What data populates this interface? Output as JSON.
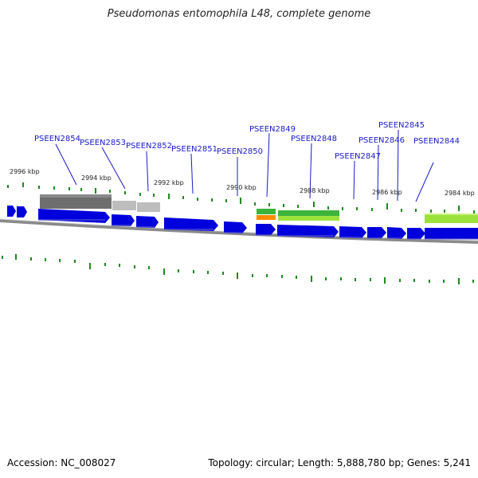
{
  "title": "Pseudomonas entomophila L48, complete genome",
  "footer": {
    "accession": "Accession: NC_008027",
    "summary": "Topology: circular; Length: 5,888,780 bp; Genes: 5,241"
  },
  "colors": {
    "gene": "#0000dd",
    "label": "#1a1acc",
    "tick": "#1e8a1e",
    "backbone": "#8a8a8a",
    "dark_gray": "#6e6e6e",
    "light_gray": "#bdbdbd",
    "green": "#3cb43c",
    "lime": "#9be23c",
    "orange": "#ff8c00"
  },
  "scale_labels": [
    "2996 kbp",
    "2994 kbp",
    "2992 kbp",
    "2990 kbp",
    "2988 kbp",
    "2986 kbp",
    "2984 kbp"
  ],
  "gene_labels": [
    "PSEEN2854",
    "PSEEN2853",
    "PSEEN2852",
    "PSEEN2851",
    "PSEEN2850",
    "PSEEN2849",
    "PSEEN2848",
    "PSEEN2847",
    "PSEEN2846",
    "PSEEN2845",
    "PSEEN2844"
  ]
}
